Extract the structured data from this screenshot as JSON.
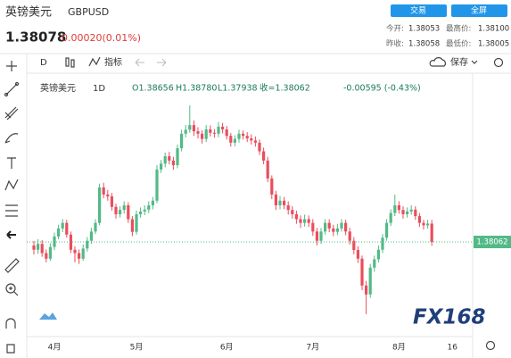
{
  "header": {
    "name": "英镑美元",
    "symbol": "GBPUSD",
    "price": "1.38078",
    "change": "0.00020(0.01%)",
    "buttons": [
      "交易",
      "全屏"
    ],
    "stats": [
      {
        "label": "今开:",
        "value": "1.38053"
      },
      {
        "label": "最高价:",
        "value": "1.38100"
      },
      {
        "label": "昨收:",
        "value": "1.38058"
      },
      {
        "label": "最低价:",
        "value": "1.38005"
      }
    ]
  },
  "toolbar": {
    "interval": "D",
    "indicators": "指标",
    "save": "保存"
  },
  "watermark": "FX168",
  "chart_data": {
    "type": "candlestick",
    "name": "英镑美元",
    "interval": "1D",
    "legend": {
      "open": "O1.38656",
      "high": "H1.38780",
      "low": "L1.37938",
      "close": "收=1.38062",
      "change": "-0.00595 (-0.43%)"
    },
    "last_price_label": "1.38062",
    "up_color": "#53b987",
    "down_color": "#eb4d5c",
    "ylim": [
      1.3514,
      1.433
    ],
    "categories": [
      null,
      null,
      null,
      null,
      null,
      "4月",
      null,
      null,
      null,
      null,
      null,
      null,
      null,
      null,
      null,
      null,
      null,
      null,
      null,
      null,
      null,
      null,
      null,
      null,
      null,
      "5月",
      null,
      null,
      null,
      null,
      null,
      null,
      null,
      null,
      null,
      null,
      null,
      null,
      null,
      null,
      null,
      null,
      null,
      null,
      null,
      null,
      null,
      "6月",
      null,
      null,
      null,
      null,
      null,
      null,
      null,
      null,
      null,
      null,
      null,
      null,
      null,
      null,
      null,
      null,
      null,
      null,
      null,
      null,
      "7月",
      null,
      null,
      null,
      null,
      null,
      null,
      null,
      null,
      null,
      null,
      null,
      null,
      null,
      null,
      null,
      null,
      null,
      null,
      null,
      null,
      "8月",
      null,
      null,
      null,
      null,
      null,
      null,
      null,
      null,
      null,
      null,
      null,
      null,
      "16",
      null,
      null,
      null,
      null,
      null
    ],
    "open": [
      1.3795,
      1.3781,
      1.38,
      1.377,
      1.3752,
      1.379,
      1.3824,
      1.385,
      1.3868,
      1.383,
      1.3781,
      1.377,
      1.3752,
      1.3785,
      1.381,
      1.384,
      1.3868,
      1.3983,
      1.396,
      1.3954,
      1.392,
      1.3896,
      1.391,
      1.3925,
      1.388,
      1.3839,
      1.3896,
      1.3905,
      1.3911,
      1.3925,
      1.394,
      1.4041,
      1.406,
      1.4084,
      1.407,
      1.4055,
      1.411,
      1.4157,
      1.417,
      1.4185,
      1.4165,
      1.4157,
      1.414,
      1.4171,
      1.416,
      1.4157,
      1.418,
      1.4171,
      1.415,
      1.4128,
      1.414,
      1.4157,
      1.415,
      1.4142,
      1.4135,
      1.4128,
      1.41,
      1.407,
      1.4012,
      1.396,
      1.3925,
      1.394,
      1.3925,
      1.391,
      1.3896,
      1.388,
      1.3868,
      1.388,
      1.3868,
      1.384,
      1.381,
      1.384,
      1.3868,
      1.385,
      1.3839,
      1.385,
      1.3868,
      1.384,
      1.381,
      1.378,
      1.3752,
      1.3665,
      1.3636,
      1.3723,
      1.375,
      1.3781,
      1.382,
      1.3868,
      1.39,
      1.3925,
      1.391,
      1.3896,
      1.3905,
      1.3911,
      1.389,
      1.3868,
      1.386,
      1.38656,
      null,
      null,
      null,
      null,
      null,
      null,
      null,
      null,
      null,
      null
    ],
    "high": [
      1.381,
      1.3815,
      1.3812,
      1.3782,
      1.3802,
      1.3836,
      1.3862,
      1.388,
      1.3878,
      1.384,
      1.3792,
      1.3782,
      1.3798,
      1.3822,
      1.3852,
      1.388,
      1.3995,
      1.3998,
      1.3975,
      1.3965,
      1.393,
      1.3922,
      1.3938,
      1.3935,
      1.389,
      1.3908,
      1.3918,
      1.3925,
      1.3938,
      1.3952,
      1.4055,
      1.4072,
      1.4096,
      1.4098,
      1.4082,
      1.4122,
      1.417,
      1.4185,
      1.4249,
      1.42,
      1.4178,
      1.4168,
      1.4185,
      1.4184,
      1.4172,
      1.4195,
      1.4192,
      1.4182,
      1.416,
      1.4152,
      1.417,
      1.4168,
      1.4162,
      1.4155,
      1.4148,
      1.4138,
      1.4112,
      1.4082,
      1.4022,
      1.3972,
      1.3955,
      1.3952,
      1.3938,
      1.3922,
      1.3908,
      1.3892,
      1.3895,
      1.3892,
      1.388,
      1.3852,
      1.3852,
      1.388,
      1.388,
      1.3862,
      1.3865,
      1.388,
      1.3878,
      1.3852,
      1.3822,
      1.3792,
      1.3762,
      1.368,
      1.3735,
      1.3762,
      1.3795,
      1.3832,
      1.388,
      1.3912,
      1.396,
      1.3938,
      1.3922,
      1.3918,
      1.3925,
      1.3922,
      1.39,
      1.3878,
      1.3878,
      1.3878,
      null,
      null,
      null,
      null,
      null,
      null,
      null,
      null,
      null,
      null
    ],
    "low": [
      1.3765,
      1.3768,
      1.3758,
      1.374,
      1.3745,
      1.378,
      1.3815,
      1.3838,
      1.382,
      1.377,
      1.374,
      1.3735,
      1.3745,
      1.3775,
      1.38,
      1.3832,
      1.386,
      1.3948,
      1.394,
      1.3908,
      1.3882,
      1.3885,
      1.3898,
      1.3868,
      1.3825,
      1.383,
      1.3885,
      1.3893,
      1.39,
      1.3912,
      1.3932,
      1.403,
      1.4048,
      1.4058,
      1.404,
      1.4045,
      1.41,
      1.4145,
      1.416,
      1.415,
      1.4142,
      1.4125,
      1.413,
      1.4148,
      1.4144,
      1.4146,
      1.4158,
      1.4138,
      1.4115,
      1.4116,
      1.4128,
      1.4138,
      1.413,
      1.4122,
      1.4115,
      1.4088,
      1.4058,
      1.4,
      1.3945,
      1.391,
      1.3912,
      1.3912,
      1.3895,
      1.3882,
      1.3865,
      1.3852,
      1.3856,
      1.3855,
      1.3826,
      1.3795,
      1.38,
      1.383,
      1.3838,
      1.3825,
      1.3828,
      1.384,
      1.3828,
      1.3798,
      1.3766,
      1.3738,
      1.365,
      1.3572,
      1.3625,
      1.371,
      1.374,
      1.377,
      1.381,
      1.3858,
      1.389,
      1.3898,
      1.3882,
      1.3885,
      1.3895,
      1.3878,
      1.3855,
      1.3846,
      1.385,
      1.37938,
      null,
      null,
      null,
      null,
      null,
      null,
      null,
      null,
      null,
      null
    ],
    "close": [
      1.3781,
      1.38,
      1.377,
      1.3752,
      1.379,
      1.3824,
      1.385,
      1.3868,
      1.383,
      1.3781,
      1.377,
      1.3752,
      1.3785,
      1.381,
      1.384,
      1.3868,
      1.3983,
      1.396,
      1.3954,
      1.392,
      1.3896,
      1.391,
      1.3925,
      1.388,
      1.3839,
      1.3896,
      1.3905,
      1.3911,
      1.3925,
      1.394,
      1.4041,
      1.406,
      1.4084,
      1.407,
      1.4055,
      1.411,
      1.4157,
      1.417,
      1.4185,
      1.4165,
      1.4157,
      1.414,
      1.4171,
      1.416,
      1.4157,
      1.418,
      1.4171,
      1.415,
      1.4128,
      1.414,
      1.4157,
      1.415,
      1.4142,
      1.4135,
      1.4128,
      1.41,
      1.407,
      1.4012,
      1.396,
      1.3925,
      1.394,
      1.3925,
      1.391,
      1.3896,
      1.388,
      1.3868,
      1.388,
      1.3868,
      1.384,
      1.381,
      1.384,
      1.3868,
      1.385,
      1.3839,
      1.385,
      1.3868,
      1.384,
      1.381,
      1.378,
      1.3752,
      1.3665,
      1.3636,
      1.3723,
      1.375,
      1.3781,
      1.382,
      1.3868,
      1.39,
      1.3925,
      1.391,
      1.3896,
      1.3905,
      1.3911,
      1.389,
      1.3868,
      1.386,
      1.38656,
      1.38062,
      null,
      null,
      null,
      null,
      null,
      null,
      null,
      null,
      null,
      null
    ]
  }
}
